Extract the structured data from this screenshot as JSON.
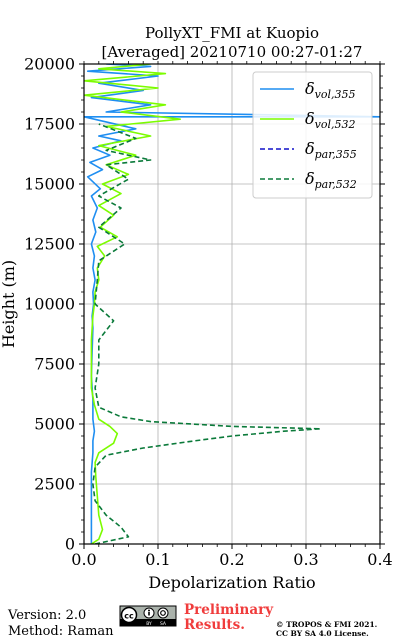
{
  "chart_data": {
    "type": "line",
    "title_line1": "PollyXT_FMI at Kuopio",
    "title_line2": "[Averaged] 20210710 00:27-01:27",
    "xlabel": "Depolarization Ratio",
    "ylabel": "Height (m)",
    "xlim": [
      0.0,
      0.4
    ],
    "ylim": [
      0,
      20000
    ],
    "x_ticks": [
      "0.0",
      "0.1",
      "0.2",
      "0.3",
      "0.4"
    ],
    "x_tick_values": [
      0.0,
      0.1,
      0.2,
      0.3,
      0.4
    ],
    "y_ticks": [
      "0",
      "2500",
      "5000",
      "7500",
      "10000",
      "12500",
      "15000",
      "17500",
      "20000"
    ],
    "y_tick_values": [
      0,
      2500,
      5000,
      7500,
      10000,
      12500,
      15000,
      17500,
      20000
    ],
    "grid": true,
    "legend_position": "top-right",
    "series": [
      {
        "name": "δ_vol,355",
        "legend_main": "δ",
        "legend_sub": "vol,355",
        "color": "#1f8ef1",
        "style": "solid",
        "points": [
          [
            0.01,
            0
          ],
          [
            0.01,
            1000
          ],
          [
            0.01,
            2000
          ],
          [
            0.01,
            3000
          ],
          [
            0.012,
            3800
          ],
          [
            0.012,
            4300
          ],
          [
            0.014,
            4700
          ],
          [
            0.012,
            5200
          ],
          [
            0.012,
            6000
          ],
          [
            0.01,
            7000
          ],
          [
            0.011,
            8000
          ],
          [
            0.012,
            9000
          ],
          [
            0.011,
            9500
          ],
          [
            0.013,
            10000
          ],
          [
            0.012,
            10500
          ],
          [
            0.015,
            11000
          ],
          [
            0.012,
            11500
          ],
          [
            0.014,
            12000
          ],
          [
            0.01,
            12500
          ],
          [
            0.016,
            13000
          ],
          [
            0.012,
            13500
          ],
          [
            0.018,
            14000
          ],
          [
            0.01,
            14500
          ],
          [
            0.022,
            14800
          ],
          [
            0.005,
            15300
          ],
          [
            0.025,
            15600
          ],
          [
            0.008,
            15900
          ],
          [
            0.035,
            16200
          ],
          [
            0.012,
            16500
          ],
          [
            0.05,
            16800
          ],
          [
            0.02,
            17000
          ],
          [
            0.07,
            17300
          ],
          [
            0.0,
            17800
          ],
          [
            0.4,
            17800
          ],
          [
            0.03,
            18000
          ],
          [
            0.09,
            18300
          ],
          [
            0.01,
            18600
          ],
          [
            0.08,
            18900
          ],
          [
            0.02,
            19200
          ],
          [
            0.1,
            19500
          ],
          [
            0.005,
            19700
          ],
          [
            0.09,
            19900
          ],
          [
            0.03,
            20000
          ]
        ]
      },
      {
        "name": "δ_vol,532",
        "legend_main": "δ",
        "legend_sub": "vol,532",
        "color": "#7cfc00",
        "style": "solid",
        "points": [
          [
            0.01,
            0
          ],
          [
            0.02,
            200
          ],
          [
            0.025,
            600
          ],
          [
            0.02,
            1200
          ],
          [
            0.018,
            2000
          ],
          [
            0.016,
            2800
          ],
          [
            0.015,
            3400
          ],
          [
            0.02,
            3800
          ],
          [
            0.04,
            4200
          ],
          [
            0.045,
            4600
          ],
          [
            0.035,
            4900
          ],
          [
            0.02,
            5200
          ],
          [
            0.014,
            5800
          ],
          [
            0.01,
            6500
          ],
          [
            0.01,
            7500
          ],
          [
            0.01,
            8500
          ],
          [
            0.012,
            9500
          ],
          [
            0.014,
            10000
          ],
          [
            0.015,
            10500
          ],
          [
            0.02,
            11000
          ],
          [
            0.018,
            11500
          ],
          [
            0.028,
            12000
          ],
          [
            0.018,
            12400
          ],
          [
            0.045,
            12800
          ],
          [
            0.022,
            13200
          ],
          [
            0.04,
            13700
          ],
          [
            0.02,
            14100
          ],
          [
            0.05,
            14600
          ],
          [
            0.025,
            15000
          ],
          [
            0.06,
            15400
          ],
          [
            0.03,
            15800
          ],
          [
            0.07,
            16200
          ],
          [
            0.02,
            16600
          ],
          [
            0.09,
            17000
          ],
          [
            0.03,
            17400
          ],
          [
            0.13,
            17700
          ],
          [
            0.05,
            18000
          ],
          [
            0.11,
            18300
          ],
          [
            0.0,
            18700
          ],
          [
            0.1,
            19000
          ],
          [
            0.0,
            19300
          ],
          [
            0.11,
            19600
          ],
          [
            0.02,
            19800
          ],
          [
            0.09,
            20000
          ]
        ]
      },
      {
        "name": "δ_par,355",
        "legend_main": "δ",
        "legend_sub": "par,355",
        "color": "#1010c8",
        "style": "dashed",
        "points": []
      },
      {
        "name": "δ_par,532",
        "legend_main": "δ",
        "legend_sub": "par,532",
        "color": "#0b7a3a",
        "style": "dashed",
        "points": [
          [
            0.015,
            0
          ],
          [
            0.06,
            300
          ],
          [
            0.05,
            700
          ],
          [
            0.03,
            1200
          ],
          [
            0.015,
            1800
          ],
          [
            0.012,
            2500
          ],
          [
            0.015,
            3200
          ],
          [
            0.03,
            3700
          ],
          [
            0.08,
            4000
          ],
          [
            0.15,
            4300
          ],
          [
            0.2,
            4500
          ],
          [
            0.27,
            4700
          ],
          [
            0.32,
            4800
          ],
          [
            0.2,
            4900
          ],
          [
            0.09,
            5100
          ],
          [
            0.05,
            5300
          ],
          [
            0.02,
            5700
          ],
          [
            0.015,
            6500
          ],
          [
            0.02,
            7500
          ],
          [
            0.02,
            8500
          ],
          [
            0.04,
            9300
          ],
          [
            0.015,
            10000
          ],
          [
            0.018,
            11000
          ],
          [
            0.02,
            11800
          ],
          [
            0.055,
            12500
          ],
          [
            0.02,
            13200
          ],
          [
            0.05,
            14000
          ],
          [
            0.02,
            14500
          ],
          [
            0.06,
            15200
          ],
          [
            0.03,
            15800
          ],
          [
            0.09,
            16000
          ],
          [
            0.03,
            16400
          ],
          [
            0.07,
            16900
          ],
          [
            0.02,
            17500
          ]
        ]
      }
    ]
  },
  "footer": {
    "version": "Version: 2.0",
    "method": "Method: Raman",
    "license_badge": "cc-by-sa-icon",
    "preliminary_line1": "Preliminary",
    "preliminary_line2": "Results.",
    "preliminary_color": "#f03c3c",
    "copyright_line1": "© TROPOS & FMI 2021.",
    "copyright_line2": "CC BY SA 4.0 License."
  }
}
